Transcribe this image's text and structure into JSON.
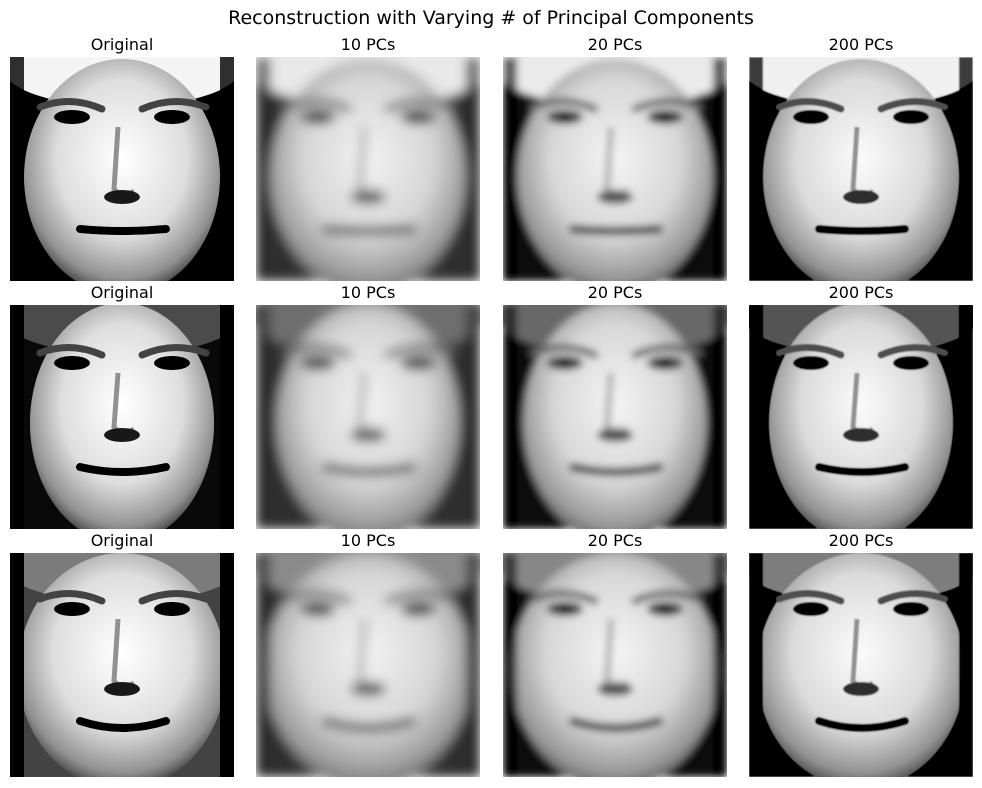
{
  "figure": {
    "title": "Reconstruction with Varying # of Principal Components"
  },
  "rows": [
    {
      "panels": [
        {
          "title": "Original",
          "blur": 0,
          "contrast": 1.25,
          "bright": 1.02,
          "image": "face portrait"
        },
        {
          "title": "10 PCs",
          "blur": 5.5,
          "contrast": 1.0,
          "bright": 1.0,
          "image": "face reconstruction"
        },
        {
          "title": "20 PCs",
          "blur": 3.6,
          "contrast": 1.05,
          "bright": 1.0,
          "image": "face reconstruction"
        },
        {
          "title": "200 PCs",
          "blur": 0.8,
          "contrast": 1.2,
          "bright": 1.0,
          "image": "face reconstruction"
        }
      ]
    },
    {
      "panels": [
        {
          "title": "Original",
          "blur": 0,
          "contrast": 1.25,
          "bright": 1.02,
          "image": "face portrait"
        },
        {
          "title": "10 PCs",
          "blur": 5.5,
          "contrast": 1.0,
          "bright": 1.0,
          "image": "face reconstruction"
        },
        {
          "title": "20 PCs",
          "blur": 3.6,
          "contrast": 1.05,
          "bright": 1.0,
          "image": "face reconstruction"
        },
        {
          "title": "200 PCs",
          "blur": 0.8,
          "contrast": 1.2,
          "bright": 1.0,
          "image": "face reconstruction"
        }
      ]
    },
    {
      "panels": [
        {
          "title": "Original",
          "blur": 0,
          "contrast": 1.25,
          "bright": 1.02,
          "image": "face portrait"
        },
        {
          "title": "10 PCs",
          "blur": 5.5,
          "contrast": 1.0,
          "bright": 1.0,
          "image": "face reconstruction"
        },
        {
          "title": "20 PCs",
          "blur": 3.6,
          "contrast": 1.05,
          "bright": 1.0,
          "image": "face reconstruction"
        },
        {
          "title": "200 PCs",
          "blur": 0.8,
          "contrast": 1.2,
          "bright": 1.0,
          "image": "face reconstruction"
        }
      ]
    }
  ]
}
